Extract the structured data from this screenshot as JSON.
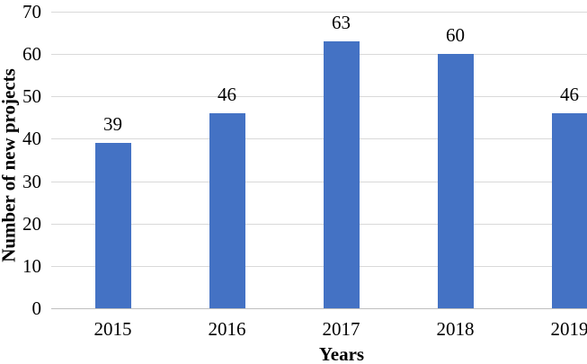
{
  "chart_data": {
    "type": "bar",
    "title": "",
    "categories": [
      "2015",
      "2016",
      "2017",
      "2018",
      "2019"
    ],
    "values": [
      39,
      46,
      63,
      60,
      46
    ],
    "xlabel": "Years",
    "ylabel": "Number of new projects",
    "ylim": [
      0,
      70
    ],
    "yticks": [
      0,
      10,
      20,
      30,
      40,
      50,
      60,
      70
    ],
    "grid": true,
    "legend_position": "none",
    "data_labels": true,
    "colors": {
      "bar": "#4472C4",
      "gridline": "#D9D9D9",
      "axis_line": "#BFBFBF",
      "text": "#000000",
      "background": "#FFFFFF"
    }
  }
}
